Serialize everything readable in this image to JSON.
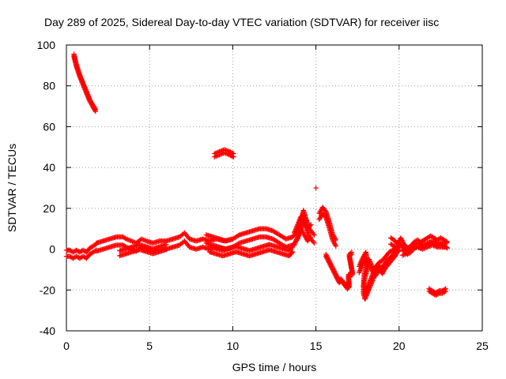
{
  "chart_data": {
    "type": "scatter",
    "title": "Day 289 of 2025, Sidereal Day-to-day VTEC variation (SDTVAR) for receiver iisc",
    "xlabel": "GPS time / hours",
    "ylabel": "SDTVAR / TECUs",
    "xlim": [
      0,
      25
    ],
    "ylim": [
      -40,
      100
    ],
    "xticks": [
      0,
      5,
      10,
      15,
      20,
      25
    ],
    "yticks": [
      -40,
      -20,
      0,
      20,
      40,
      60,
      80,
      100
    ],
    "grid": true,
    "marker": "+",
    "color": "#ff0000",
    "series": [
      {
        "name": "SDTVAR",
        "segments": [
          {
            "points": [
              [
                0.0,
                -2
              ],
              [
                0.2,
                -2
              ],
              [
                0.4,
                -3
              ],
              [
                0.6,
                -2
              ],
              [
                0.8,
                -3
              ],
              [
                1.0,
                -2
              ],
              [
                1.2,
                -3
              ],
              [
                1.4,
                -1
              ],
              [
                1.6,
                0
              ],
              [
                1.8,
                1
              ]
            ],
            "dy": [
              1.5,
              -1.5
            ]
          },
          {
            "points": [
              [
                0.45,
                95
              ],
              [
                0.6,
                90
              ],
              [
                0.8,
                85
              ],
              [
                1.0,
                81
              ],
              [
                1.2,
                77
              ],
              [
                1.4,
                73
              ],
              [
                1.6,
                70
              ],
              [
                1.75,
                68
              ]
            ],
            "dy": [
              0.5,
              -0.5
            ]
          },
          {
            "points": [
              [
                1.8,
                1
              ],
              [
                2.2,
                2
              ],
              [
                2.6,
                3
              ],
              [
                3.0,
                4
              ],
              [
                3.4,
                4
              ],
              [
                3.6,
                3
              ],
              [
                3.9,
                2
              ],
              [
                4.2,
                1
              ],
              [
                4.5,
                3
              ],
              [
                4.8,
                2
              ],
              [
                5.2,
                1
              ],
              [
                5.6,
                2
              ],
              [
                6.0,
                2
              ],
              [
                6.4,
                3
              ],
              [
                6.8,
                4
              ],
              [
                7.1,
                6
              ],
              [
                7.4,
                3
              ],
              [
                7.8,
                2
              ],
              [
                8.2,
                3
              ],
              [
                8.6,
                2
              ],
              [
                9.0,
                3
              ],
              [
                9.5,
                2
              ],
              [
                10.0,
                3
              ]
            ],
            "dy": [
              2,
              -2
            ]
          },
          {
            "points": [
              [
                3.2,
                -2
              ],
              [
                3.6,
                -1
              ],
              [
                4.0,
                0
              ],
              [
                4.4,
                1
              ],
              [
                4.8,
                0
              ],
              [
                5.2,
                -1
              ],
              [
                5.6,
                0
              ],
              [
                6.0,
                1
              ]
            ],
            "dy": [
              1.2,
              -1.2
            ]
          },
          {
            "points": [
              [
                8.4,
                5
              ],
              [
                8.8,
                4
              ],
              [
                9.2,
                3
              ],
              [
                9.6,
                2
              ],
              [
                10.0,
                3
              ],
              [
                10.4,
                5
              ],
              [
                10.8,
                6
              ],
              [
                11.2,
                7
              ],
              [
                11.6,
                8
              ],
              [
                12.0,
                8
              ],
              [
                12.4,
                7
              ],
              [
                12.8,
                5
              ],
              [
                13.2,
                3
              ],
              [
                13.6,
                4
              ],
              [
                13.9,
                7
              ],
              [
                14.1,
                12
              ],
              [
                14.25,
                17
              ],
              [
                14.4,
                13
              ],
              [
                14.6,
                8
              ],
              [
                14.9,
                5
              ]
            ],
            "dy": [
              2,
              -2
            ]
          },
          {
            "points": [
              [
                8.6,
                0
              ],
              [
                9.0,
                -1
              ],
              [
                9.4,
                -2
              ],
              [
                9.8,
                -1
              ],
              [
                10.2,
                0
              ],
              [
                10.6,
                -1
              ],
              [
                11.0,
                -2
              ],
              [
                11.4,
                -1
              ],
              [
                11.8,
                0
              ],
              [
                12.2,
                1
              ],
              [
                12.6,
                0
              ],
              [
                13.0,
                -1
              ],
              [
                13.4,
                -2
              ],
              [
                13.6,
                0
              ]
            ],
            "dy": [
              1.3,
              -1.3
            ]
          },
          {
            "points": [
              [
                8.9,
                46
              ],
              [
                9.2,
                47
              ],
              [
                9.5,
                48
              ],
              [
                9.8,
                47
              ],
              [
                10.05,
                46
              ]
            ],
            "dy": [
              0.8,
              -0.8
            ]
          },
          {
            "points": [
              [
                13.7,
                5
              ],
              [
                13.9,
                9
              ],
              [
                14.1,
                13
              ],
              [
                14.3,
                10
              ],
              [
                14.5,
                7
              ],
              [
                14.7,
                9
              ]
            ],
            "dy": [
              3,
              -3
            ]
          },
          {
            "points": [
              [
                15.0,
                30
              ]
            ],
            "dy": [
              0
            ]
          },
          {
            "points": [
              [
                15.2,
                16
              ],
              [
                15.4,
                19
              ],
              [
                15.6,
                17
              ],
              [
                15.8,
                12
              ],
              [
                16.0,
                6
              ],
              [
                16.2,
                3
              ]
            ],
            "dy": [
              1.5,
              -1.5
            ]
          },
          {
            "points": [
              [
                15.6,
                -3
              ],
              [
                16.4,
                -16
              ],
              [
                16.5,
                -15
              ],
              [
                16.9,
                -19
              ],
              [
                17.0,
                -18
              ],
              [
                16.95,
                -13
              ],
              [
                17.2,
                -12
              ],
              [
                17.0,
                -3
              ],
              [
                17.15,
                -2
              ]
            ],
            "dy": [
              0.5,
              -0.5
            ]
          },
          {
            "points": [
              [
                17.6,
                -10
              ],
              [
                17.8,
                -6
              ],
              [
                18.0,
                -3
              ],
              [
                18.1,
                -8
              ],
              [
                17.9,
                -14
              ],
              [
                17.85,
                -20
              ],
              [
                17.95,
                -23
              ],
              [
                18.2,
                -18
              ],
              [
                18.4,
                -14
              ],
              [
                18.6,
                -10
              ],
              [
                18.8,
                -8
              ],
              [
                19.0,
                -7
              ],
              [
                19.2,
                -5
              ],
              [
                19.4,
                -3
              ],
              [
                19.6,
                -2
              ],
              [
                19.8,
                -1
              ],
              [
                20.0,
                1
              ]
            ],
            "dy": [
              1.5,
              -1.5
            ]
          },
          {
            "points": [
              [
                18.2,
                -6
              ],
              [
                18.4,
                -10
              ],
              [
                18.6,
                -12
              ],
              [
                18.8,
                -9
              ],
              [
                19.0,
                -11
              ],
              [
                19.2,
                -8
              ],
              [
                19.4,
                -6
              ],
              [
                19.6,
                -4
              ],
              [
                19.8,
                -2
              ]
            ],
            "dy": [
              1,
              -1
            ]
          },
          {
            "points": [
              [
                19.5,
                4
              ],
              [
                19.7,
                3
              ],
              [
                19.9,
                1
              ],
              [
                20.1,
                4
              ],
              [
                20.3,
                1
              ],
              [
                20.5,
                -1
              ],
              [
                20.7,
                0
              ],
              [
                20.9,
                2
              ],
              [
                21.1,
                3
              ],
              [
                21.3,
                2
              ],
              [
                21.5,
                3
              ],
              [
                21.7,
                4
              ],
              [
                21.9,
                5
              ],
              [
                22.1,
                4
              ],
              [
                22.3,
                3
              ],
              [
                22.5,
                4
              ],
              [
                22.7,
                3
              ],
              [
                22.9,
                2
              ]
            ],
            "dy": [
              1.5,
              -1.5
            ]
          },
          {
            "points": [
              [
                20.2,
                -2
              ],
              [
                20.5,
                -1
              ],
              [
                20.8,
                1
              ],
              [
                21.1,
                2
              ],
              [
                21.4,
                1
              ],
              [
                21.7,
                2
              ],
              [
                22.0,
                3
              ],
              [
                22.3,
                2
              ],
              [
                22.6,
                2
              ],
              [
                22.85,
                2
              ]
            ],
            "dy": [
              1,
              -1
            ]
          },
          {
            "points": [
              [
                21.8,
                -20
              ],
              [
                22.0,
                -21
              ],
              [
                22.2,
                -22
              ],
              [
                22.4,
                -21
              ],
              [
                22.6,
                -21
              ],
              [
                22.8,
                -20
              ]
            ],
            "dy": [
              0.6,
              -0.6
            ]
          }
        ]
      }
    ]
  }
}
